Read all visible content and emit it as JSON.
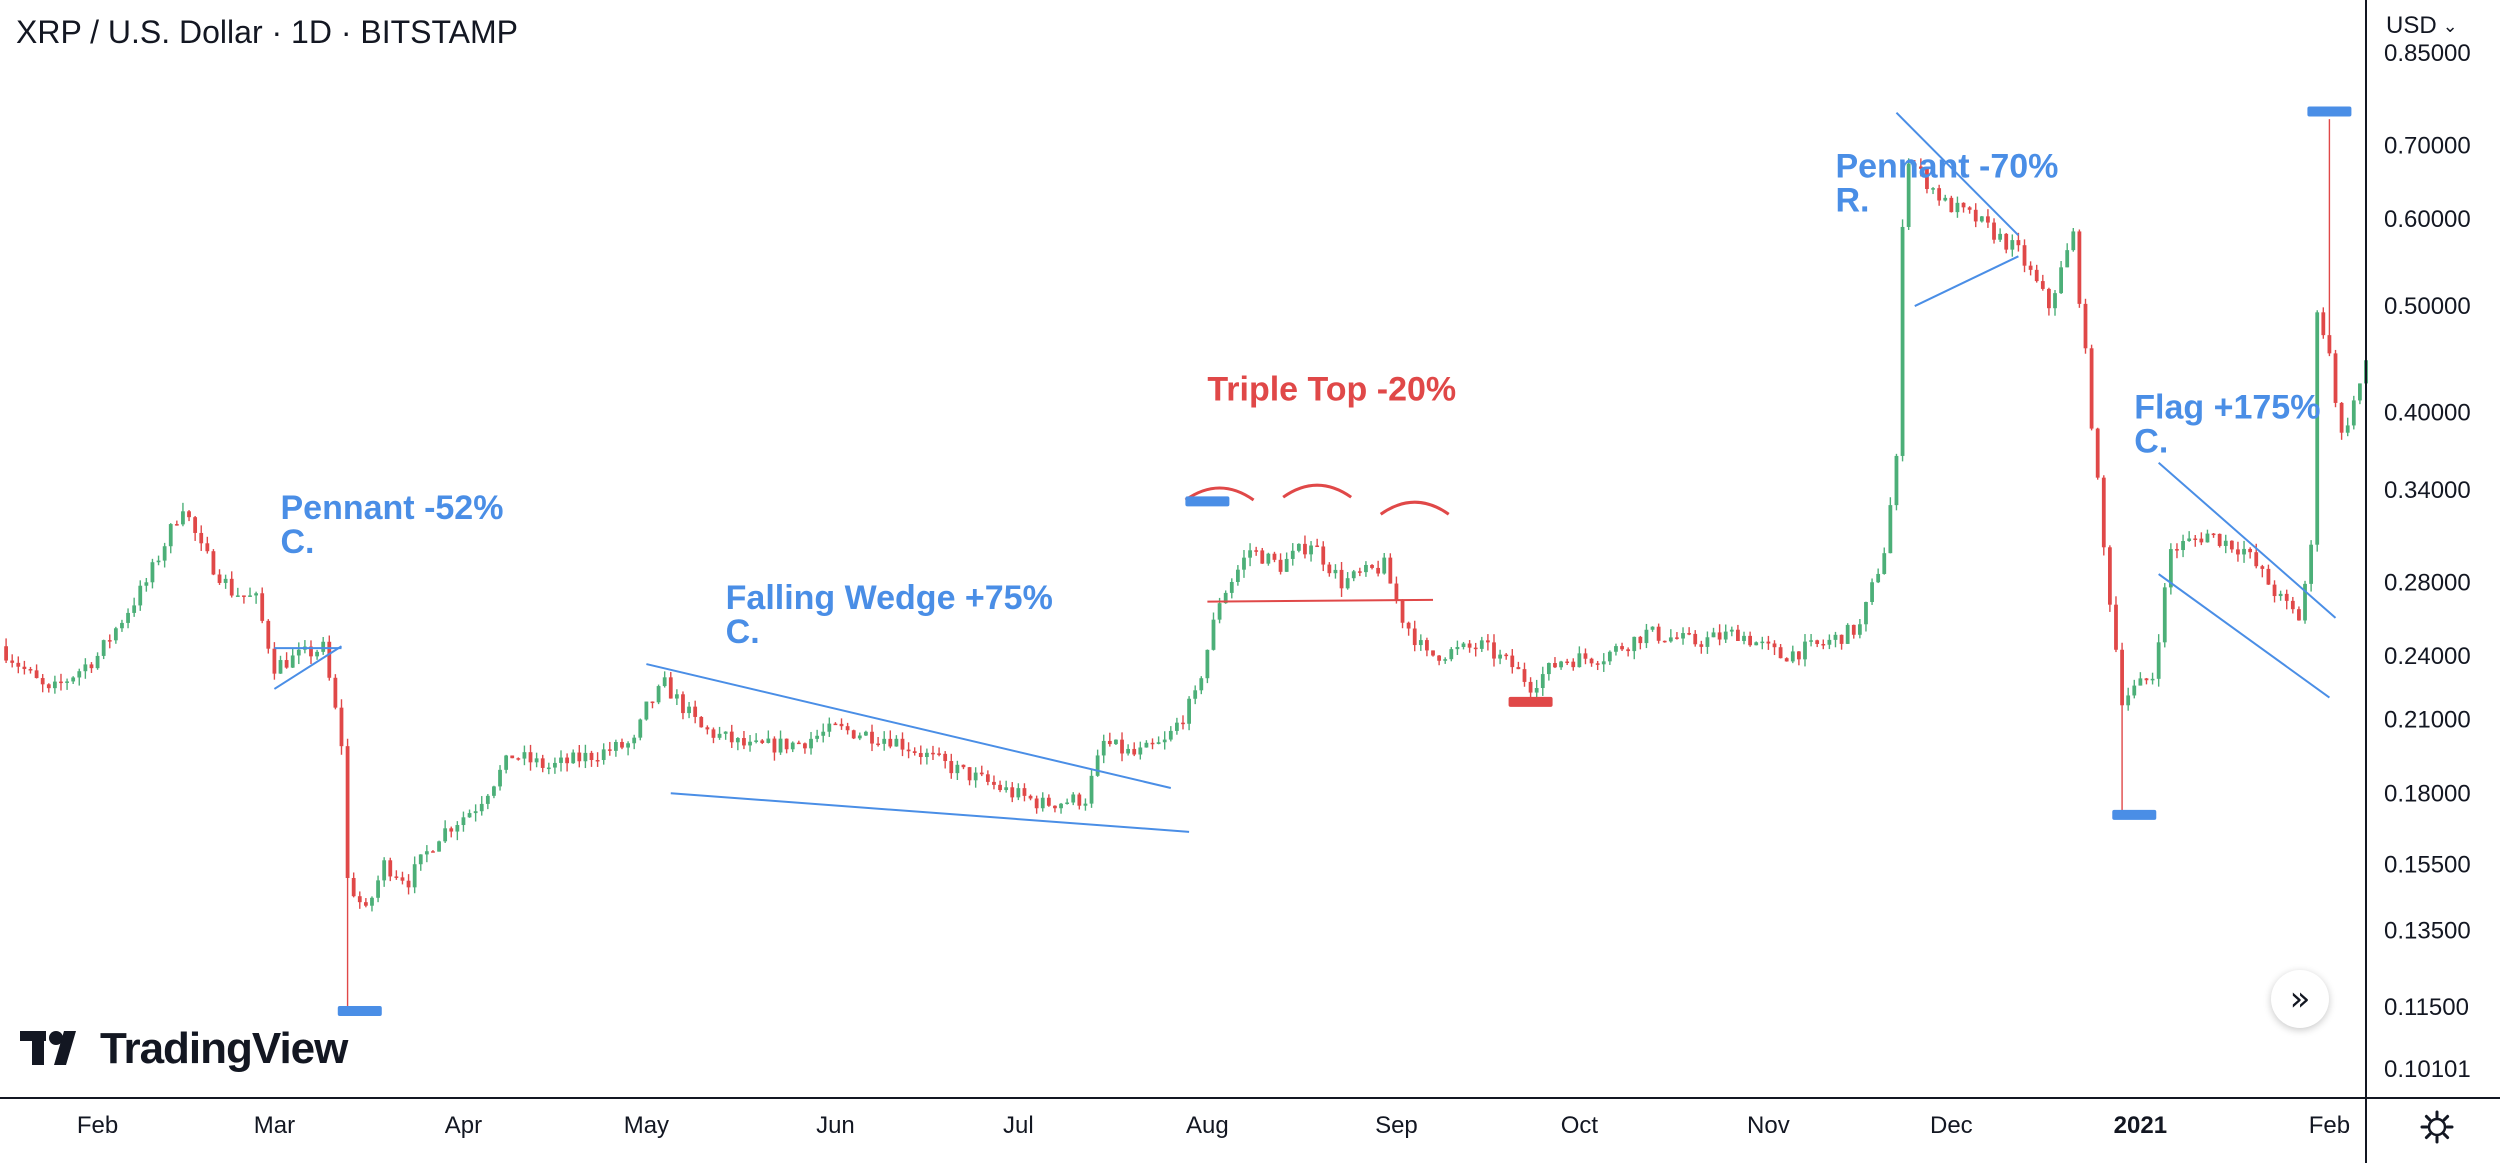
{
  "header": {
    "title": "XRP / U.S. Dollar · 1D · BITSTAMP",
    "currency": "USD"
  },
  "branding": {
    "logo_text": "TradingView"
  },
  "controls": {
    "scroll_icon": "double-chevron-right-icon",
    "settings_icon": "gear-icon"
  },
  "colors": {
    "up": "#4caf78",
    "down": "#e04848",
    "annotation_blue": "#4a8ee6",
    "annotation_red": "#e04848",
    "axis": "#131722",
    "pattern_line": "#4a8ee6"
  },
  "chart_data": {
    "type": "candlestick",
    "title": "XRP / U.S. Dollar · 1D · BITSTAMP",
    "y_scale": "log",
    "ylim": [
      0.095,
      0.95
    ],
    "y_ticks": [
      0.85,
      0.7,
      0.6,
      0.5,
      0.4,
      0.34,
      0.28,
      0.24,
      0.21,
      0.18,
      0.155,
      0.135,
      0.115,
      0.101
    ],
    "y_tick_labels": [
      "0.85000",
      "0.70000",
      "0.60000",
      "0.50000",
      "0.40000",
      "0.34000",
      "0.28000",
      "0.24000",
      "0.21000",
      "0.18000",
      "0.15500",
      "0.13500",
      "0.11500",
      "0.10101"
    ],
    "x_range": [
      "2020-01-16",
      "2021-02-07"
    ],
    "x_ticks": [
      {
        "date": "2020-02-01",
        "label": "Feb",
        "bold": false
      },
      {
        "date": "2020-03-01",
        "label": "Mar",
        "bold": false
      },
      {
        "date": "2020-04-01",
        "label": "Apr",
        "bold": false
      },
      {
        "date": "2020-05-01",
        "label": "May",
        "bold": false
      },
      {
        "date": "2020-06-01",
        "label": "Jun",
        "bold": false
      },
      {
        "date": "2020-07-01",
        "label": "Jul",
        "bold": false
      },
      {
        "date": "2020-08-01",
        "label": "Aug",
        "bold": false
      },
      {
        "date": "2020-09-01",
        "label": "Sep",
        "bold": false
      },
      {
        "date": "2020-10-01",
        "label": "Oct",
        "bold": false
      },
      {
        "date": "2020-11-01",
        "label": "Nov",
        "bold": false
      },
      {
        "date": "2020-12-01",
        "label": "Dec",
        "bold": false
      },
      {
        "date": "2021-01-01",
        "label": "2021",
        "bold": true
      },
      {
        "date": "2021-02-01",
        "label": "Feb",
        "bold": false
      }
    ],
    "price_path": [
      [
        "2020-01-16",
        0.245
      ],
      [
        "2020-01-24",
        0.222
      ],
      [
        "2020-02-01",
        0.24
      ],
      [
        "2020-02-09",
        0.28
      ],
      [
        "2020-02-15",
        0.33
      ],
      [
        "2020-02-18",
        0.3
      ],
      [
        "2020-02-23",
        0.275
      ],
      [
        "2020-02-27",
        0.27
      ],
      [
        "2020-03-01",
        0.235
      ],
      [
        "2020-03-05",
        0.24
      ],
      [
        "2020-03-09",
        0.244
      ],
      [
        "2020-03-12",
        0.2
      ],
      [
        "2020-03-13",
        0.15
      ],
      [
        "2020-03-16",
        0.14
      ],
      [
        "2020-03-19",
        0.155
      ],
      [
        "2020-03-23",
        0.15
      ],
      [
        "2020-03-28",
        0.165
      ],
      [
        "2020-04-03",
        0.175
      ],
      [
        "2020-04-09",
        0.195
      ],
      [
        "2020-04-15",
        0.19
      ],
      [
        "2020-04-22",
        0.195
      ],
      [
        "2020-04-29",
        0.2
      ],
      [
        "2020-05-01",
        0.215
      ],
      [
        "2020-05-04",
        0.226
      ],
      [
        "2020-05-10",
        0.206
      ],
      [
        "2020-05-18",
        0.198
      ],
      [
        "2020-05-26",
        0.2
      ],
      [
        "2020-06-01",
        0.206
      ],
      [
        "2020-06-10",
        0.202
      ],
      [
        "2020-06-20",
        0.19
      ],
      [
        "2020-06-30",
        0.18
      ],
      [
        "2020-07-05",
        0.176
      ],
      [
        "2020-07-12",
        0.178
      ],
      [
        "2020-07-15",
        0.2
      ],
      [
        "2020-07-20",
        0.195
      ],
      [
        "2020-07-25",
        0.2
      ],
      [
        "2020-07-30",
        0.22
      ],
      [
        "2020-08-03",
        0.27
      ],
      [
        "2020-08-08",
        0.3
      ],
      [
        "2020-08-13",
        0.29
      ],
      [
        "2020-08-18",
        0.305
      ],
      [
        "2020-08-23",
        0.28
      ],
      [
        "2020-08-30",
        0.29
      ],
      [
        "2020-09-02",
        0.26
      ],
      [
        "2020-09-06",
        0.24
      ],
      [
        "2020-09-15",
        0.245
      ],
      [
        "2020-09-20",
        0.235
      ],
      [
        "2020-09-23",
        0.226
      ],
      [
        "2020-09-28",
        0.238
      ],
      [
        "2020-10-05",
        0.24
      ],
      [
        "2020-10-12",
        0.252
      ],
      [
        "2020-10-20",
        0.247
      ],
      [
        "2020-10-27",
        0.252
      ],
      [
        "2020-11-03",
        0.24
      ],
      [
        "2020-11-10",
        0.246
      ],
      [
        "2020-11-16",
        0.255
      ],
      [
        "2020-11-20",
        0.3
      ],
      [
        "2020-11-22",
        0.36
      ],
      [
        "2020-11-23",
        0.6
      ],
      [
        "2020-11-24",
        0.68
      ],
      [
        "2020-11-30",
        0.62
      ],
      [
        "2020-12-05",
        0.6
      ],
      [
        "2020-12-12",
        0.56
      ],
      [
        "2020-12-17",
        0.5
      ],
      [
        "2020-12-21",
        0.58
      ],
      [
        "2020-12-23",
        0.45
      ],
      [
        "2020-12-26",
        0.3
      ],
      [
        "2020-12-29",
        0.22
      ],
      [
        "2021-01-03",
        0.23
      ],
      [
        "2021-01-06",
        0.3
      ],
      [
        "2021-01-12",
        0.31
      ],
      [
        "2021-01-18",
        0.3
      ],
      [
        "2021-01-24",
        0.27
      ],
      [
        "2021-01-27",
        0.26
      ],
      [
        "2021-01-29",
        0.3
      ],
      [
        "2021-01-30",
        0.5
      ],
      [
        "2021-02-01",
        0.45
      ],
      [
        "2021-02-03",
        0.38
      ],
      [
        "2021-02-07",
        0.44
      ]
    ],
    "extreme_wicks": [
      {
        "date": "2020-03-13",
        "low": 0.114
      },
      {
        "date": "2020-12-29",
        "low": 0.172
      },
      {
        "date": "2021-02-01",
        "high": 0.74
      }
    ],
    "annotations": [
      {
        "label": "Pennant -52%",
        "sub": "C.",
        "color": "blue",
        "date": "2020-03-02",
        "price": 0.32
      },
      {
        "label": "Falling Wedge +75%",
        "sub": "C.",
        "color": "blue",
        "date": "2020-05-14",
        "price": 0.265
      },
      {
        "label": "Triple Top -20%",
        "sub": "",
        "color": "red",
        "date": "2020-08-01",
        "price": 0.41
      },
      {
        "label": "Pennant -70%",
        "sub": "R.",
        "color": "blue",
        "date": "2020-11-12",
        "price": 0.655
      },
      {
        "label": "Flag +175%",
        "sub": "C.",
        "color": "blue",
        "date": "2020-12-31",
        "price": 0.395
      }
    ],
    "pattern_lines": [
      {
        "color": "blue",
        "from": [
          "2020-03-01",
          0.244
        ],
        "to": [
          "2020-03-12",
          0.244
        ]
      },
      {
        "color": "blue",
        "from": [
          "2020-03-01",
          0.224
        ],
        "to": [
          "2020-03-12",
          0.245
        ]
      },
      {
        "color": "blue",
        "from": [
          "2020-05-01",
          0.236
        ],
        "to": [
          "2020-07-26",
          0.182
        ]
      },
      {
        "color": "blue",
        "from": [
          "2020-05-05",
          0.18
        ],
        "to": [
          "2020-07-29",
          0.166
        ]
      },
      {
        "color": "red",
        "from": [
          "2020-08-01",
          0.269
        ],
        "to": [
          "2020-09-07",
          0.27
        ]
      },
      {
        "color": "blue",
        "from": [
          "2020-11-22",
          0.75
        ],
        "to": [
          "2020-12-12",
          0.58
        ]
      },
      {
        "color": "blue",
        "from": [
          "2020-11-25",
          0.5
        ],
        "to": [
          "2020-12-12",
          0.555
        ]
      },
      {
        "color": "blue",
        "from": [
          "2021-01-04",
          0.36
        ],
        "to": [
          "2021-02-02",
          0.26
        ]
      },
      {
        "color": "blue",
        "from": [
          "2021-01-04",
          0.285
        ],
        "to": [
          "2021-02-01",
          0.22
        ]
      }
    ],
    "target_markers": [
      {
        "color": "blue",
        "date": "2020-03-15",
        "price": 0.114
      },
      {
        "color": "blue",
        "date": "2020-08-01",
        "price": 0.332
      },
      {
        "color": "red",
        "date": "2020-09-23",
        "price": 0.218
      },
      {
        "color": "blue",
        "date": "2020-12-31",
        "price": 0.172
      },
      {
        "color": "blue",
        "date": "2021-02-01",
        "price": 0.752
      }
    ],
    "triple_top_arcs": [
      {
        "date": "2020-08-03",
        "price": 0.34
      },
      {
        "date": "2020-08-19",
        "price": 0.342
      },
      {
        "date": "2020-09-04",
        "price": 0.33
      }
    ]
  }
}
